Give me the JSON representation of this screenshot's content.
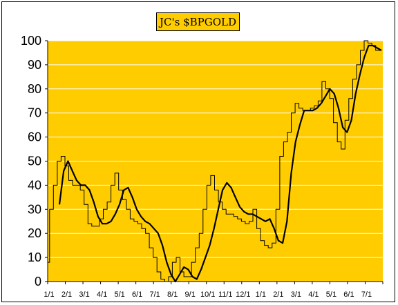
{
  "colors": {
    "plot_background": "#FFCC00",
    "title_background": "#FFCC00",
    "axis": "#000000",
    "grid": "#FFFFFF",
    "raw_line": "#000000",
    "smooth_line": "#000000"
  },
  "chart_data": {
    "type": "line",
    "title": "JC's $BPGOLD",
    "xlabel": "",
    "ylabel": "",
    "ylim": [
      0,
      100
    ],
    "yticks": [
      0,
      10,
      20,
      30,
      40,
      50,
      60,
      70,
      80,
      90,
      100
    ],
    "grid": "horizontal",
    "legend": "none",
    "x_tick_labels": [
      "1/1",
      "2/1",
      "3/1",
      "4/1",
      "5/1",
      "6/1",
      "7/1",
      "8/1",
      "9/1",
      "10/1",
      "11/1",
      "12/1",
      "1/1",
      "2/1",
      "3/1",
      "4/1",
      "5/1",
      "6/1",
      "7/1"
    ],
    "series": [
      {
        "style": "thin",
        "values": [
          8,
          30,
          40,
          50,
          52,
          48,
          42,
          40,
          40,
          38,
          32,
          24,
          23,
          23,
          26,
          30,
          33,
          40,
          45,
          38,
          34,
          30,
          26,
          25,
          24,
          22,
          20,
          14,
          10,
          4,
          1,
          0,
          2,
          8,
          10,
          4,
          2,
          2,
          8,
          14,
          20,
          30,
          40,
          44,
          38,
          33,
          30,
          28,
          28,
          27,
          26,
          25,
          24,
          25,
          30,
          22,
          17,
          15,
          14,
          16,
          30,
          52,
          58,
          62,
          70,
          74,
          72,
          71,
          71,
          72,
          73,
          75,
          83,
          80,
          76,
          66,
          58,
          55,
          67,
          76,
          84,
          90,
          96,
          100,
          99,
          98,
          96,
          96
        ]
      },
      {
        "style": "thick",
        "values": [
          32,
          46,
          50,
          46,
          42,
          40,
          40,
          38,
          33,
          27,
          24,
          24,
          25,
          28,
          32,
          38,
          39,
          35,
          30,
          27,
          25,
          24,
          22,
          20,
          15,
          8,
          3,
          0,
          3,
          6,
          5,
          2,
          1,
          5,
          10,
          15,
          22,
          30,
          38,
          41,
          39,
          35,
          31,
          29,
          28,
          28,
          27,
          26,
          25,
          26,
          22,
          17,
          16,
          25,
          45,
          58,
          65,
          71,
          71,
          71,
          72,
          74,
          77,
          80,
          78,
          72,
          64,
          62,
          67,
          78,
          86,
          93,
          98,
          98,
          97,
          96
        ]
      }
    ]
  }
}
